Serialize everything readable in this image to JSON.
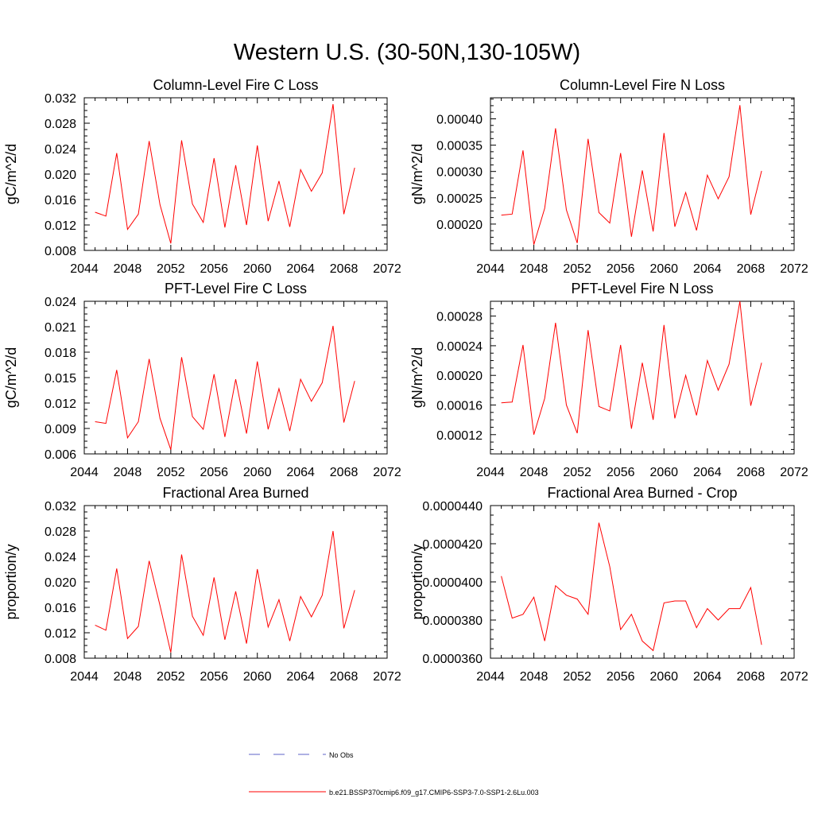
{
  "figure": {
    "title": "Western U.S. (30-50N,130-105W)"
  },
  "legend": {
    "entries": [
      {
        "label": "No Obs",
        "style": "dashed",
        "color": "#5e63c7"
      },
      {
        "label": "b.e21.BSSP370cmip6.f09_g17.CMIP6-SSP3-7.0-SSP1-2.6Lu.003",
        "style": "solid",
        "color": "#ff0000"
      }
    ]
  },
  "chart_data": [
    {
      "type": "line",
      "title": "Column-Level Fire C Loss",
      "ylabel": "gC/m^2/d",
      "xlim": [
        2044,
        2072
      ],
      "xticks": [
        "2044",
        "2048",
        "2052",
        "2056",
        "2060",
        "2064",
        "2068",
        "2072"
      ],
      "ylim": [
        0.008,
        0.032
      ],
      "yticks": [
        "0.008",
        "0.012",
        "0.016",
        "0.020",
        "0.024",
        "0.028",
        "0.032"
      ],
      "x": [
        2045,
        2046,
        2047,
        2048,
        2049,
        2050,
        2051,
        2052,
        2053,
        2054,
        2055,
        2056,
        2057,
        2058,
        2059,
        2060,
        2061,
        2062,
        2063,
        2064,
        2065,
        2066,
        2067,
        2068,
        2069
      ],
      "series": [
        {
          "name": "b.e21.BSSP370cmip6.f09_g17.CMIP6-SSP3-7.0-SSP1-2.6Lu.003",
          "color": "#ff0000",
          "values": [
            0.014,
            0.0134,
            0.0233,
            0.0113,
            0.0137,
            0.0252,
            0.0152,
            0.0091,
            0.0253,
            0.0153,
            0.0124,
            0.0225,
            0.0116,
            0.0214,
            0.012,
            0.0245,
            0.0126,
            0.0189,
            0.0117,
            0.0207,
            0.0173,
            0.0202,
            0.031,
            0.0137,
            0.021
          ]
        }
      ]
    },
    {
      "type": "line",
      "title": "Column-Level Fire N Loss",
      "ylabel": "gN/m^2/d",
      "xlim": [
        2044,
        2072
      ],
      "xticks": [
        "2044",
        "2048",
        "2052",
        "2056",
        "2060",
        "2064",
        "2068",
        "2072"
      ],
      "ylim": [
        0.00015,
        0.00044
      ],
      "yticks": [
        "0.00020",
        "0.00025",
        "0.00030",
        "0.00035",
        "0.00040"
      ],
      "x": [
        2045,
        2046,
        2047,
        2048,
        2049,
        2050,
        2051,
        2052,
        2053,
        2054,
        2055,
        2056,
        2057,
        2058,
        2059,
        2060,
        2061,
        2062,
        2063,
        2064,
        2065,
        2066,
        2067,
        2068,
        2069
      ],
      "series": [
        {
          "name": "b.e21.BSSP370cmip6.f09_g17.CMIP6-SSP3-7.0-SSP1-2.6Lu.003",
          "color": "#ff0000",
          "values": [
            0.000217,
            0.000219,
            0.00034,
            0.000161,
            0.00023,
            0.000382,
            0.000227,
            0.000164,
            0.000362,
            0.000222,
            0.000202,
            0.000335,
            0.000176,
            0.000302,
            0.000186,
            0.000373,
            0.000195,
            0.00026,
            0.000188,
            0.000293,
            0.000248,
            0.00029,
            0.000426,
            0.000218,
            0.000301
          ]
        }
      ]
    },
    {
      "type": "line",
      "title": "PFT-Level Fire C Loss",
      "ylabel": "gC/m^2/d",
      "xlim": [
        2044,
        2072
      ],
      "xticks": [
        "2044",
        "2048",
        "2052",
        "2056",
        "2060",
        "2064",
        "2068",
        "2072"
      ],
      "ylim": [
        0.006,
        0.024
      ],
      "yticks": [
        "0.006",
        "0.009",
        "0.012",
        "0.015",
        "0.018",
        "0.021",
        "0.024"
      ],
      "x": [
        2045,
        2046,
        2047,
        2048,
        2049,
        2050,
        2051,
        2052,
        2053,
        2054,
        2055,
        2056,
        2057,
        2058,
        2059,
        2060,
        2061,
        2062,
        2063,
        2064,
        2065,
        2066,
        2067,
        2068,
        2069
      ],
      "series": [
        {
          "name": "b.e21.BSSP370cmip6.f09_g17.CMIP6-SSP3-7.0-SSP1-2.6Lu.003",
          "color": "#ff0000",
          "values": [
            0.0098,
            0.0096,
            0.0159,
            0.0079,
            0.0098,
            0.0172,
            0.0102,
            0.0065,
            0.0174,
            0.0104,
            0.0089,
            0.0154,
            0.008,
            0.0148,
            0.0084,
            0.0169,
            0.0089,
            0.0137,
            0.0087,
            0.0148,
            0.0122,
            0.0144,
            0.0211,
            0.0097,
            0.0146
          ]
        }
      ]
    },
    {
      "type": "line",
      "title": "PFT-Level Fire N Loss",
      "ylabel": "gN/m^2/d",
      "xlim": [
        2044,
        2072
      ],
      "xticks": [
        "2044",
        "2048",
        "2052",
        "2056",
        "2060",
        "2064",
        "2068",
        "2072"
      ],
      "ylim": [
        9.4e-05,
        0.0003
      ],
      "yticks": [
        "0.00012",
        "0.00016",
        "0.00020",
        "0.00024",
        "0.00028"
      ],
      "x": [
        2045,
        2046,
        2047,
        2048,
        2049,
        2050,
        2051,
        2052,
        2053,
        2054,
        2055,
        2056,
        2057,
        2058,
        2059,
        2060,
        2061,
        2062,
        2063,
        2064,
        2065,
        2066,
        2067,
        2068,
        2069
      ],
      "series": [
        {
          "name": "b.e21.BSSP370cmip6.f09_g17.CMIP6-SSP3-7.0-SSP1-2.6Lu.003",
          "color": "#ff0000",
          "values": [
            0.000163,
            0.000164,
            0.000241,
            0.00012,
            0.000169,
            0.000271,
            0.00016,
            0.000122,
            0.000261,
            0.000158,
            0.000152,
            0.000241,
            0.000128,
            0.000217,
            0.00014,
            0.000268,
            0.000142,
            0.0002,
            0.000146,
            0.00022,
            0.00018,
            0.000215,
            0.0003,
            0.000159,
            0.000217
          ]
        }
      ]
    },
    {
      "type": "line",
      "title": "Fractional Area Burned",
      "ylabel": "proportion/y",
      "xlim": [
        2044,
        2072
      ],
      "xticks": [
        "2044",
        "2048",
        "2052",
        "2056",
        "2060",
        "2064",
        "2068",
        "2072"
      ],
      "ylim": [
        0.008,
        0.032
      ],
      "yticks": [
        "0.008",
        "0.012",
        "0.016",
        "0.020",
        "0.024",
        "0.028",
        "0.032"
      ],
      "x": [
        2045,
        2046,
        2047,
        2048,
        2049,
        2050,
        2051,
        2052,
        2053,
        2054,
        2055,
        2056,
        2057,
        2058,
        2059,
        2060,
        2061,
        2062,
        2063,
        2064,
        2065,
        2066,
        2067,
        2068,
        2069
      ],
      "series": [
        {
          "name": "b.e21.BSSP370cmip6.f09_g17.CMIP6-SSP3-7.0-SSP1-2.6Lu.003",
          "color": "#ff0000",
          "values": [
            0.0132,
            0.0124,
            0.0221,
            0.0111,
            0.013,
            0.0233,
            0.0163,
            0.0089,
            0.0243,
            0.0146,
            0.0116,
            0.0207,
            0.0109,
            0.0185,
            0.0103,
            0.022,
            0.0129,
            0.0172,
            0.0107,
            0.0177,
            0.0145,
            0.0179,
            0.028,
            0.0127,
            0.0187
          ]
        }
      ]
    },
    {
      "type": "line",
      "title": "Fractional Area Burned - Crop",
      "ylabel": "proportion/y",
      "xlim": [
        2044,
        2072
      ],
      "xticks": [
        "2044",
        "2048",
        "2052",
        "2056",
        "2060",
        "2064",
        "2068",
        "2072"
      ],
      "ylim": [
        3.6e-05,
        4.4e-05
      ],
      "yticks": [
        "0.0000360",
        "0.0000380",
        "0.0000400",
        "0.0000420",
        "0.0000440"
      ],
      "x": [
        2045,
        2046,
        2047,
        2048,
        2049,
        2050,
        2051,
        2052,
        2053,
        2054,
        2055,
        2056,
        2057,
        2058,
        2059,
        2060,
        2061,
        2062,
        2063,
        2064,
        2065,
        2066,
        2067,
        2068,
        2069
      ],
      "series": [
        {
          "name": "b.e21.BSSP370cmip6.f09_g17.CMIP6-SSP3-7.0-SSP1-2.6Lu.003",
          "color": "#ff0000",
          "values": [
            4.03e-05,
            3.81e-05,
            3.83e-05,
            3.92e-05,
            3.69e-05,
            3.98e-05,
            3.93e-05,
            3.91e-05,
            3.83e-05,
            4.31e-05,
            4.08e-05,
            3.75e-05,
            3.83e-05,
            3.69e-05,
            3.64e-05,
            3.89e-05,
            3.9e-05,
            3.9e-05,
            3.76e-05,
            3.86e-05,
            3.8e-05,
            3.86e-05,
            3.86e-05,
            3.97e-05,
            3.67e-05
          ]
        }
      ]
    }
  ]
}
